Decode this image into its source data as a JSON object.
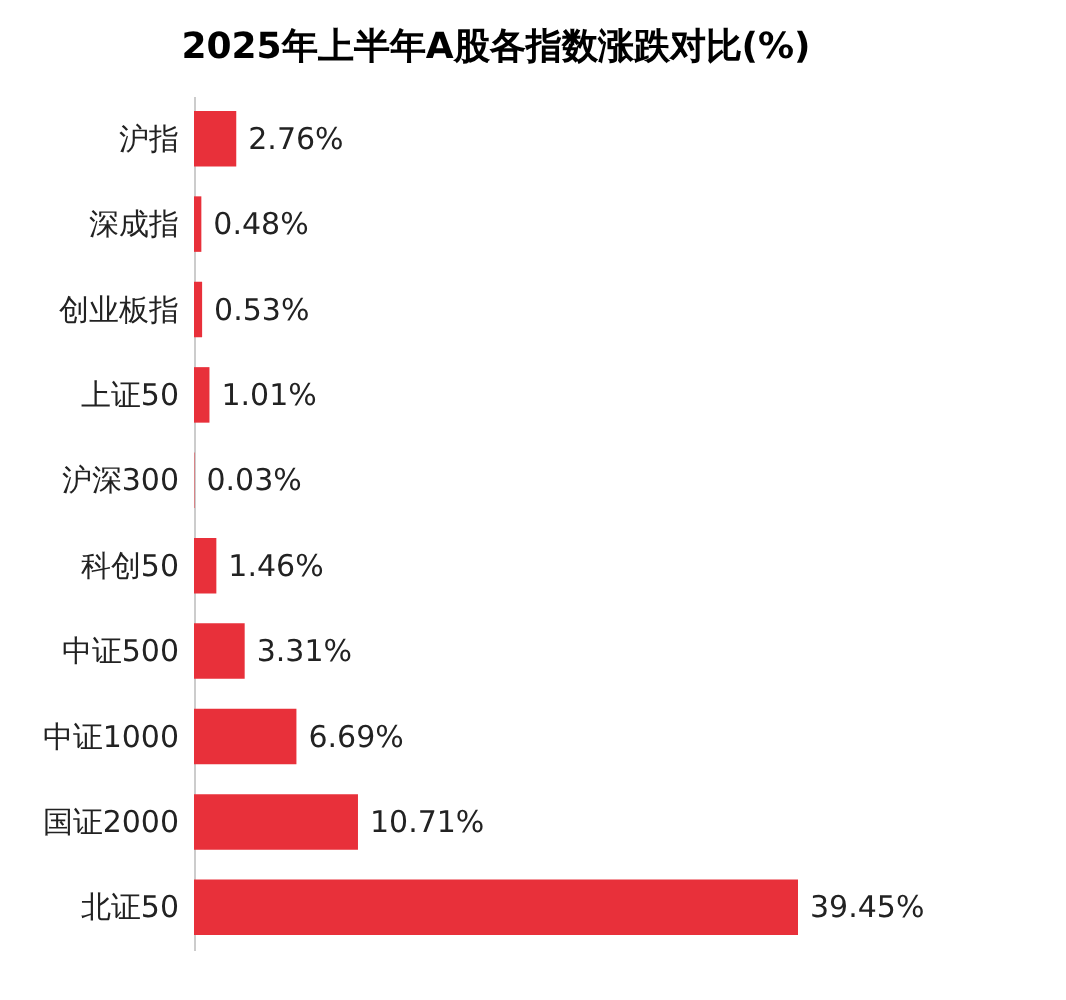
{
  "chart_data": {
    "type": "bar",
    "orientation": "horizontal",
    "title": "2025年上半年A股各指数涨跌对比(%)",
    "categories": [
      "沪指",
      "深成指",
      "创业板指",
      "上证50",
      "沪深300",
      "科创50",
      "中证500",
      "中证1000",
      "国证2000",
      "北证50"
    ],
    "values": [
      2.76,
      0.48,
      0.53,
      1.01,
      0.03,
      1.46,
      3.31,
      6.69,
      10.71,
      39.45
    ],
    "value_labels": [
      "2.76%",
      "0.48%",
      "0.53%",
      "1.01%",
      "0.03%",
      "1.46%",
      "3.31%",
      "6.69%",
      "10.71%",
      "39.45%"
    ],
    "color": "#e8303a",
    "grid": false
  }
}
